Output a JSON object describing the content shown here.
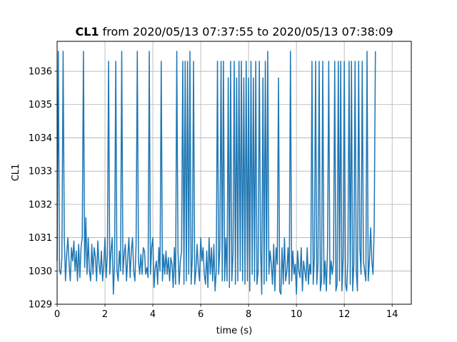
{
  "chart_data": {
    "type": "line",
    "title": {
      "bold_part": "CL1",
      "rest": " from 2020/05/13 07:37:55 to 2020/05/13 07:38:09"
    },
    "xlabel": "time (s)",
    "ylabel": "CL1",
    "xlim": [
      0,
      14.8
    ],
    "ylim": [
      1029.0,
      1036.9
    ],
    "x_ticks": [
      0,
      2,
      4,
      6,
      8,
      10,
      12,
      14
    ],
    "y_ticks": [
      1029,
      1030,
      1031,
      1032,
      1033,
      1034,
      1035,
      1036
    ],
    "grid": true,
    "line_color": "#1f77b4",
    "series": [
      {
        "name": "",
        "sample_interval_s": 0.05,
        "values": [
          1030.3,
          1036.6,
          1030.0,
          1029.9,
          1030.4,
          1036.6,
          1031.0,
          1029.7,
          1030.5,
          1031.0,
          1030.2,
          1029.7,
          1030.7,
          1030.3,
          1030.9,
          1030.0,
          1030.6,
          1029.7,
          1030.8,
          1029.8,
          1030.7,
          1031.0,
          1036.6,
          1030.1,
          1031.6,
          1029.9,
          1031.0,
          1030.0,
          1029.7,
          1030.8,
          1029.9,
          1030.7,
          1030.4,
          1029.7,
          1030.9,
          1030.2,
          1029.9,
          1030.6,
          1029.7,
          1030.2,
          1031.0,
          1029.8,
          1030.5,
          1036.3,
          1029.9,
          1030.6,
          1031.0,
          1029.3,
          1030.2,
          1036.3,
          1030.0,
          1029.7,
          1030.6,
          1030.0,
          1036.6,
          1029.9,
          1030.5,
          1030.8,
          1029.7,
          1030.4,
          1031.0,
          1029.8,
          1030.6,
          1031.0,
          1030.0,
          1029.7,
          1030.8,
          1036.6,
          1030.3,
          1029.9,
          1030.5,
          1029.9,
          1030.7,
          1030.6,
          1029.9,
          1030.1,
          1029.8,
          1036.6,
          1029.9,
          1030.7,
          1031.0,
          1029.5,
          1030.1,
          1030.3,
          1029.6,
          1030.7,
          1030.0,
          1036.3,
          1029.7,
          1030.5,
          1029.9,
          1030.6,
          1029.9,
          1030.4,
          1029.7,
          1030.4,
          1030.2,
          1029.5,
          1030.7,
          1029.6,
          1036.6,
          1030.6,
          1029.6,
          1030.3,
          1030.6,
          1036.3,
          1029.6,
          1036.3,
          1029.7,
          1036.3,
          1029.9,
          1036.6,
          1029.6,
          1030.4,
          1036.3,
          1029.6,
          1030.0,
          1030.8,
          1030.1,
          1029.7,
          1031.0,
          1030.3,
          1030.7,
          1029.9,
          1029.6,
          1030.6,
          1029.5,
          1031.0,
          1029.9,
          1030.7,
          1029.7,
          1030.8,
          1029.4,
          1030.0,
          1036.3,
          1029.9,
          1030.7,
          1036.3,
          1029.7,
          1036.3,
          1029.7,
          1031.0,
          1029.7,
          1035.8,
          1029.5,
          1036.3,
          1029.7,
          1030.5,
          1036.3,
          1029.6,
          1035.8,
          1029.7,
          1036.3,
          1030.0,
          1036.3,
          1029.7,
          1035.8,
          1029.6,
          1036.3,
          1029.7,
          1035.8,
          1029.4,
          1036.3,
          1029.9,
          1035.8,
          1029.7,
          1036.3,
          1029.6,
          1030.0,
          1036.3,
          1030.7,
          1029.3,
          1035.8,
          1029.6,
          1036.3,
          1029.7,
          1036.6,
          1029.9,
          1030.6,
          1030.2,
          1029.6,
          1030.8,
          1029.4,
          1030.7,
          1030.2,
          1035.8,
          1029.4,
          1029.3,
          1030.7,
          1029.6,
          1031.0,
          1029.7,
          1030.0,
          1030.7,
          1029.6,
          1036.6,
          1029.7,
          1030.6,
          1029.9,
          1030.2,
          1029.3,
          1030.6,
          1030.0,
          1029.8,
          1030.7,
          1029.4,
          1030.3,
          1030.0,
          1029.7,
          1030.7,
          1029.6,
          1030.2,
          1029.9,
          1036.3,
          1029.6,
          1030.4,
          1036.3,
          1029.6,
          1030.2,
          1036.3,
          1029.4,
          1029.7,
          1036.3,
          1029.6,
          1030.3,
          1029.4,
          1030.7,
          1036.3,
          1029.6,
          1030.3,
          1029.9,
          1030.3,
          1036.3,
          1029.4,
          1029.6,
          1036.3,
          1029.7,
          1036.3,
          1029.4,
          1030.4,
          1036.3,
          1029.6,
          1029.4,
          1030.3,
          1036.3,
          1029.6,
          1036.3,
          1029.4,
          1030.2,
          1036.3,
          1030.0,
          1029.4,
          1036.3,
          1030.7,
          1029.9,
          1036.3,
          1030.3,
          1030.0,
          1029.7,
          1036.6,
          1029.7,
          1030.3,
          1031.3,
          1030.3,
          1029.9,
          1031.3,
          1036.6
        ]
      }
    ]
  }
}
